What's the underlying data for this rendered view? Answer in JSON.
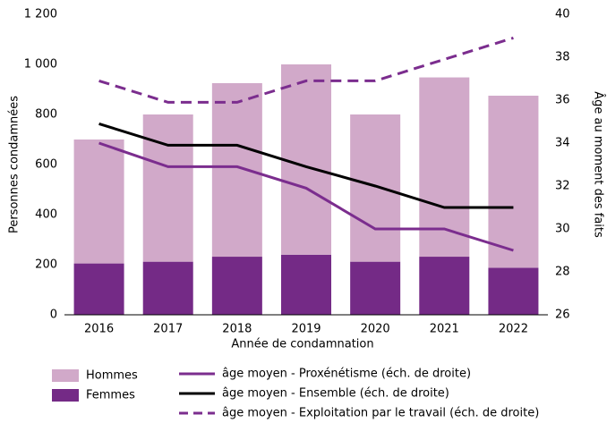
{
  "chart_data": {
    "type": "bar",
    "categories": [
      "2016",
      "2017",
      "2018",
      "2019",
      "2020",
      "2021",
      "2022"
    ],
    "stacked": true,
    "xlabel": "Année de condamnation",
    "ylabel": "Personnes condamnées",
    "y2label": "Âge au moment des faits",
    "ylim": [
      0,
      1200
    ],
    "yticks": [
      0,
      200,
      400,
      600,
      800,
      {
        "value": 1000,
        "label": "1 000"
      },
      {
        "value": 1200,
        "label": "1 200"
      }
    ],
    "y2lim": [
      26,
      40
    ],
    "y2ticks": [
      26,
      28,
      30,
      32,
      34,
      36,
      38,
      40
    ],
    "grid": false,
    "series": [
      {
        "name": "Hommes",
        "color": "#d1a9c9",
        "type": "bar",
        "values": [
          495,
          588,
          693,
          760,
          588,
          716,
          687
        ]
      },
      {
        "name": "Femmes",
        "color": "#742a86",
        "type": "bar",
        "values": [
          205,
          212,
          232,
          240,
          212,
          232,
          188
        ]
      },
      {
        "name": "âge moyen - Proxénétisme (éch. de droite)",
        "color": "#7b2d8e",
        "type": "line",
        "axis": "y2",
        "style": "solid",
        "values": [
          34,
          32.9,
          32.9,
          31.9,
          30,
          30,
          29
        ]
      },
      {
        "name": "âge moyen - Ensemble (éch. de droite)",
        "color": "#000000",
        "type": "line",
        "axis": "y2",
        "style": "solid",
        "values": [
          34.9,
          33.9,
          33.9,
          32.9,
          32,
          31,
          31
        ]
      },
      {
        "name": "âge moyen - Exploitation par le travail (éch. de droite)",
        "color": "#7b2d8e",
        "type": "line",
        "axis": "y2",
        "style": "dashed",
        "values": [
          36.9,
          35.9,
          35.9,
          36.9,
          36.9,
          37.9,
          38.9
        ]
      }
    ]
  }
}
